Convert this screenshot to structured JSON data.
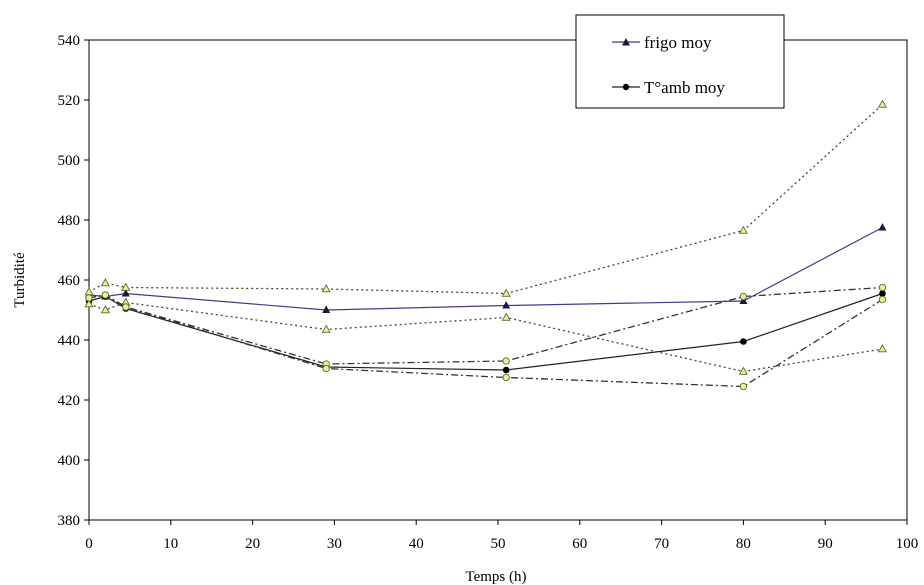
{
  "chart_data": {
    "type": "line",
    "xlabel": "Temps (h)",
    "ylabel": "Turbidité",
    "xlim": [
      0,
      100
    ],
    "ylim": [
      380,
      540
    ],
    "xticks": [
      0,
      10,
      20,
      30,
      40,
      50,
      60,
      70,
      80,
      90,
      100
    ],
    "yticks": [
      380,
      400,
      420,
      440,
      460,
      480,
      500,
      520,
      540
    ],
    "xtick_labels": [
      "0",
      "10",
      "20",
      "30",
      "40",
      "50",
      "60",
      "70",
      "80",
      "90",
      "100"
    ],
    "ytick_labels": [
      "380",
      "400",
      "420",
      "440",
      "460",
      "480",
      "500",
      "520",
      "540"
    ],
    "grid": false,
    "legend_position": "top-right",
    "series": [
      {
        "name": "frigo moy",
        "marker": "filled-triangle",
        "color": "#3a3f8c",
        "dash": "solid",
        "x": [
          0,
          2,
          4.5,
          29,
          51,
          80,
          97
        ],
        "y": [
          455,
          454.5,
          455.5,
          450,
          451.5,
          453,
          477.5
        ]
      },
      {
        "name": "T°amb moy",
        "marker": "filled-circle",
        "color": "#222222",
        "dash": "solid",
        "x": [
          0,
          2,
          4.5,
          29,
          51,
          80,
          97
        ],
        "y": [
          453,
          454.5,
          450.5,
          431,
          430,
          439.5,
          455.5
        ]
      },
      {
        "marker": "open-triangle",
        "color": "#444444",
        "dash": "dotted",
        "x": [
          0,
          2,
          4.5,
          29,
          51,
          80,
          97
        ],
        "y": [
          456,
          459,
          457.5,
          457,
          455.5,
          476.5,
          518.5
        ]
      },
      {
        "marker": "open-triangle",
        "color": "#444444",
        "dash": "dotted",
        "x": [
          0,
          2,
          4.5,
          29,
          51,
          80,
          97
        ],
        "y": [
          452,
          450,
          452.5,
          443.5,
          447.5,
          429.5,
          437
        ]
      },
      {
        "marker": "open-circle",
        "color": "#333333",
        "dash": "dashdot",
        "x": [
          0,
          2,
          4.5,
          29,
          51,
          80,
          97
        ],
        "y": [
          454,
          455,
          451,
          432,
          433,
          454.5,
          457.5
        ]
      },
      {
        "marker": "open-circle",
        "color": "#333333",
        "dash": "dashdot",
        "x": [
          0,
          2,
          4.5,
          29,
          51,
          80,
          97
        ],
        "y": [
          454,
          455,
          451,
          430.5,
          427.5,
          424.5,
          453.5
        ]
      }
    ]
  }
}
